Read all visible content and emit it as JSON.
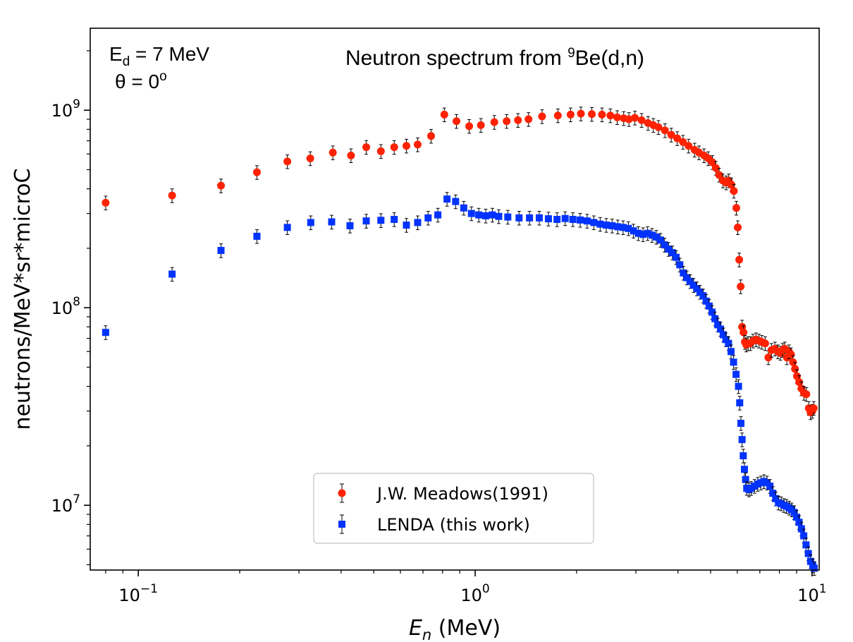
{
  "chart_data": {
    "type": "scatter",
    "title": {
      "main": "Neutron spectrum from ",
      "sup": "9",
      "rest": "Be(d,n)"
    },
    "annotation": {
      "line1": {
        "main": "E",
        "sub": "d",
        "rest": " = 7 MeV"
      },
      "line2": {
        "main": "θ = 0",
        "sup": "o"
      }
    },
    "xlabel": {
      "var": "E",
      "sub": "n",
      "unit": " (MeV)"
    },
    "ylabel": "neutrons/MeV*sr*microC",
    "xscale": "log",
    "yscale": "log",
    "xlim": [
      0.072,
      10.5
    ],
    "ylim": [
      4700000.0,
      2600000000.0
    ],
    "xticks": [
      {
        "base": "10",
        "exp": "−1",
        "value": 0.1
      },
      {
        "base": "10",
        "exp": "0",
        "value": 1
      },
      {
        "base": "10",
        "exp": "1",
        "value": 10
      }
    ],
    "yticks": [
      {
        "base": "10",
        "exp": "7",
        "value": 10000000.0
      },
      {
        "base": "10",
        "exp": "8",
        "value": 100000000.0
      },
      {
        "base": "10",
        "exp": "9",
        "value": 1000000000.0
      }
    ],
    "legend_position": "lower-center",
    "series": [
      {
        "name": "J.W. Meadows(1991)",
        "color": "#ff2200",
        "marker": "circle",
        "x": [
          0.08,
          0.126,
          0.176,
          0.225,
          0.277,
          0.324,
          0.378,
          0.428,
          0.475,
          0.525,
          0.575,
          0.625,
          0.675,
          0.74,
          0.81,
          0.88,
          0.96,
          1.04,
          1.14,
          1.24,
          1.34,
          1.44,
          1.58,
          1.76,
          1.92,
          2.06,
          2.22,
          2.38,
          2.52,
          2.64,
          2.76,
          2.86,
          2.98,
          3.12,
          3.26,
          3.38,
          3.5,
          3.66,
          3.82,
          3.98,
          4.14,
          4.3,
          4.48,
          4.62,
          4.78,
          4.92,
          5.06,
          5.18,
          5.3,
          5.44,
          5.56,
          5.66,
          5.76,
          5.86,
          5.96,
          6.02,
          6.08,
          6.14,
          6.2,
          6.26,
          6.32,
          6.38,
          6.46,
          6.56,
          6.68,
          6.82,
          6.96,
          7.1,
          7.26,
          7.42,
          7.58,
          7.76,
          7.92,
          8.06,
          8.18,
          8.3,
          8.42,
          8.54,
          8.66,
          8.78,
          8.9,
          9.02,
          9.16,
          9.3,
          9.46,
          9.62,
          9.78,
          9.9,
          10.02,
          10.12
        ],
        "y": [
          340000000.0,
          370000000.0,
          415000000.0,
          485000000.0,
          550000000.0,
          570000000.0,
          610000000.0,
          590000000.0,
          650000000.0,
          620000000.0,
          650000000.0,
          660000000.0,
          670000000.0,
          740000000.0,
          950000000.0,
          880000000.0,
          830000000.0,
          840000000.0,
          870000000.0,
          880000000.0,
          890000000.0,
          900000000.0,
          930000000.0,
          940000000.0,
          950000000.0,
          960000000.0,
          955000000.0,
          950000000.0,
          940000000.0,
          920000000.0,
          910000000.0,
          900000000.0,
          915000000.0,
          890000000.0,
          860000000.0,
          840000000.0,
          820000000.0,
          790000000.0,
          750000000.0,
          720000000.0,
          690000000.0,
          660000000.0,
          630000000.0,
          610000000.0,
          590000000.0,
          570000000.0,
          545000000.0,
          510000000.0,
          470000000.0,
          440000000.0,
          430000000.0,
          440000000.0,
          420000000.0,
          390000000.0,
          320000000.0,
          255000000.0,
          175000000.0,
          128000000.0,
          80000000.0,
          75000000.0,
          67000000.0,
          65000000.0,
          66000000.0,
          66000000.0,
          68000000.0,
          69000000.0,
          68000000.0,
          67000000.0,
          66000000.0,
          56000000.0,
          61000000.0,
          62000000.0,
          60000000.0,
          59000000.0,
          61000000.0,
          62000000.0,
          56000000.0,
          60000000.0,
          58000000.0,
          53000000.0,
          49000000.0,
          45000000.0,
          42000000.0,
          39000000.0,
          37000000.0,
          36500000.0,
          31000000.0,
          29500000.0,
          30000000.0,
          31000000.0
        ]
      },
      {
        "name": "LENDA (this work)",
        "color": "#0033ff",
        "marker": "square",
        "x": [
          0.08,
          0.126,
          0.176,
          0.225,
          0.277,
          0.325,
          0.375,
          0.425,
          0.475,
          0.525,
          0.575,
          0.625,
          0.675,
          0.725,
          0.775,
          0.825,
          0.875,
          0.925,
          0.975,
          1.025,
          1.075,
          1.125,
          1.175,
          1.25,
          1.35,
          1.45,
          1.55,
          1.65,
          1.75,
          1.85,
          1.95,
          2.05,
          2.15,
          2.25,
          2.35,
          2.45,
          2.55,
          2.65,
          2.75,
          2.85,
          2.95,
          3.05,
          3.15,
          3.25,
          3.35,
          3.45,
          3.55,
          3.65,
          3.75,
          3.85,
          3.95,
          4.05,
          4.15,
          4.25,
          4.35,
          4.45,
          4.55,
          4.65,
          4.75,
          4.85,
          4.95,
          5.05,
          5.15,
          5.25,
          5.35,
          5.45,
          5.55,
          5.65,
          5.75,
          5.85,
          5.95,
          6.05,
          6.1,
          6.15,
          6.2,
          6.25,
          6.3,
          6.35,
          6.4,
          6.5,
          6.6,
          6.75,
          6.9,
          7.05,
          7.2,
          7.35,
          7.5,
          7.65,
          7.8,
          7.95,
          8.1,
          8.25,
          8.4,
          8.55,
          8.7,
          8.85,
          9.0,
          9.15,
          9.3,
          9.45,
          9.6,
          9.75,
          9.9,
          10.05,
          10.15
        ],
        "y": [
          75000000.0,
          148000000.0,
          195000000.0,
          230000000.0,
          255000000.0,
          270000000.0,
          272000000.0,
          260000000.0,
          275000000.0,
          277000000.0,
          280000000.0,
          262000000.0,
          270000000.0,
          285000000.0,
          295000000.0,
          355000000.0,
          345000000.0,
          320000000.0,
          300000000.0,
          295000000.0,
          292000000.0,
          295000000.0,
          290000000.0,
          288000000.0,
          285000000.0,
          285000000.0,
          285000000.0,
          282000000.0,
          280000000.0,
          283000000.0,
          280000000.0,
          278000000.0,
          275000000.0,
          270000000.0,
          265000000.0,
          262000000.0,
          260000000.0,
          257000000.0,
          255000000.0,
          252000000.0,
          245000000.0,
          238000000.0,
          235000000.0,
          238000000.0,
          233000000.0,
          228000000.0,
          220000000.0,
          208000000.0,
          198000000.0,
          190000000.0,
          180000000.0,
          165000000.0,
          150000000.0,
          142000000.0,
          136000000.0,
          130000000.0,
          125000000.0,
          120000000.0,
          115000000.0,
          108000000.0,
          102000000.0,
          95000000.0,
          88000000.0,
          82000000.0,
          78000000.0,
          73000000.0,
          69000000.0,
          66000000.0,
          60000000.0,
          53000000.0,
          46000000.0,
          40000000.0,
          33000000.0,
          26000000.0,
          21500000.0,
          17800000.0,
          15200000.0,
          13500000.0,
          12200000.0,
          12000000.0,
          12200000.0,
          12500000.0,
          12800000.0,
          13000000.0,
          13200000.0,
          13000000.0,
          12500000.0,
          11500000.0,
          10800000.0,
          10300000.0,
          10200000.0,
          10000000.0,
          9900000.0,
          9700000.0,
          9500000.0,
          9200000.0,
          8700000.0,
          8200000.0,
          7600000.0,
          7000000.0,
          6300000.0,
          5700000.0,
          5200000.0,
          4950000.0,
          4800000.0
        ]
      }
    ]
  }
}
